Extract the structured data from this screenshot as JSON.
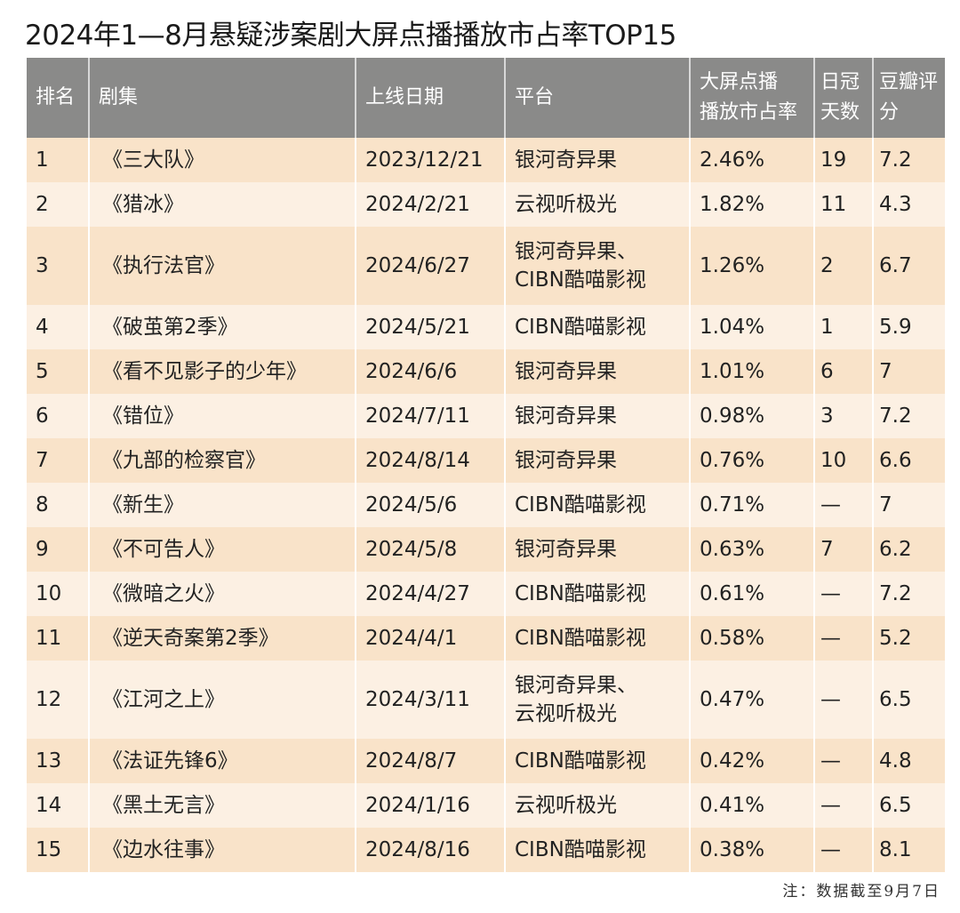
{
  "title": "2024年1—8月悬疑涉案剧大屏点播播放市占率TOP15",
  "note": "注：数据截至9月7日",
  "chart_data": {
    "type": "table",
    "title": "2024年1—8月悬疑涉案剧大屏点播播放市占率TOP15",
    "columns": [
      "排名",
      "剧集",
      "上线日期",
      "平台",
      "大屏点播播放市占率",
      "日冠天数",
      "豆瓣评分"
    ],
    "header_lines": [
      [
        "排名"
      ],
      [
        "剧集"
      ],
      [
        "上线日期"
      ],
      [
        "平台"
      ],
      [
        "大屏点播",
        "播放市占率"
      ],
      [
        "日冠",
        "天数"
      ],
      [
        "豆瓣",
        "评分"
      ]
    ],
    "rows": [
      [
        "1",
        "《三大队》",
        "2023/12/21",
        "银河奇异果",
        "2.46%",
        "19",
        "7.2"
      ],
      [
        "2",
        "《猎冰》",
        "2024/2/21",
        "云视听极光",
        "1.82%",
        "11",
        "4.3"
      ],
      [
        "3",
        "《执行法官》",
        "2024/6/27",
        "银河奇异果、\nCIBN酷喵影视",
        "1.26%",
        "2",
        "6.7"
      ],
      [
        "4",
        "《破茧第2季》",
        "2024/5/21",
        "CIBN酷喵影视",
        "1.04%",
        "1",
        "5.9"
      ],
      [
        "5",
        "《看不见影子的少年》",
        "2024/6/6",
        "银河奇异果",
        "1.01%",
        "6",
        "7"
      ],
      [
        "6",
        "《错位》",
        "2024/7/11",
        "银河奇异果",
        "0.98%",
        "3",
        "7.2"
      ],
      [
        "7",
        "《九部的检察官》",
        "2024/8/14",
        "银河奇异果",
        "0.76%",
        "10",
        "6.6"
      ],
      [
        "8",
        "《新生》",
        "2024/5/6",
        "CIBN酷喵影视",
        "0.71%",
        "—",
        "7"
      ],
      [
        "9",
        "《不可告人》",
        "2024/5/8",
        "银河奇异果",
        "0.63%",
        "7",
        "6.2"
      ],
      [
        "10",
        "《微暗之火》",
        "2024/4/27",
        "CIBN酷喵影视",
        "0.61%",
        "—",
        "7.2"
      ],
      [
        "11",
        "《逆天奇案第2季》",
        "2024/4/1",
        "CIBN酷喵影视",
        "0.58%",
        "—",
        "5.2"
      ],
      [
        "12",
        "《江河之上》",
        "2024/3/11",
        "银河奇异果、\n云视听极光",
        "0.47%",
        "—",
        "6.5"
      ],
      [
        "13",
        "《法证先锋6》",
        "2024/8/7",
        "CIBN酷喵影视",
        "0.42%",
        "—",
        "4.8"
      ],
      [
        "14",
        "《黑土无言》",
        "2024/1/16",
        "云视听极光",
        "0.41%",
        "—",
        "6.5"
      ],
      [
        "15",
        "《边水往事》",
        "2024/8/16",
        "CIBN酷喵影视",
        "0.38%",
        "—",
        "8.1"
      ]
    ]
  },
  "colors": {
    "header_bg": "#8a8a89",
    "row_odd": "#f9e3c9",
    "row_even": "#fcf0e3"
  }
}
